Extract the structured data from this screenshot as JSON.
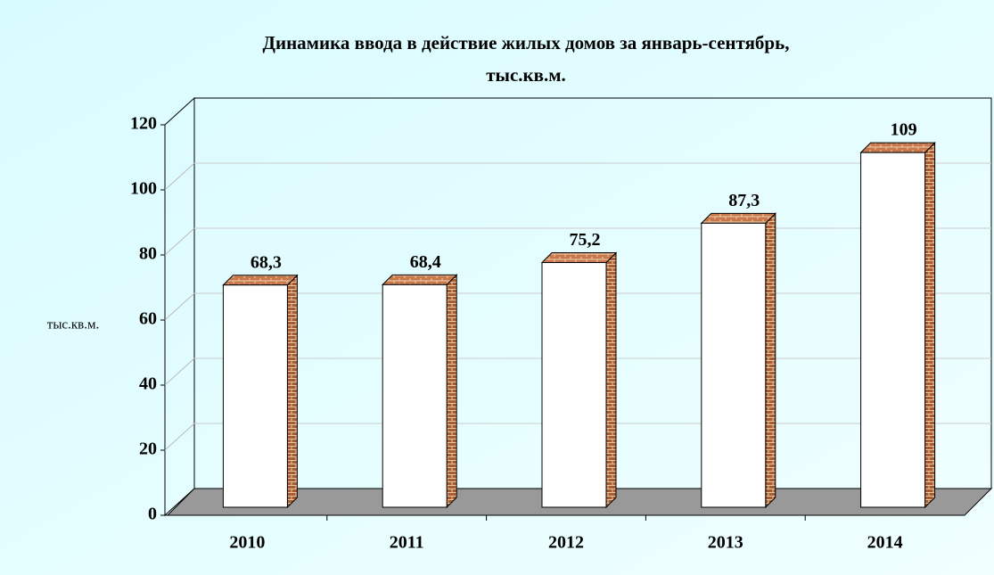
{
  "chart_data": {
    "type": "bar3d",
    "title": "Динамика ввода в действие жилых домов за январь-сентябрь,",
    "subtitle": "тыс.кв.м.",
    "y_label": "тыс.кв.м.",
    "categories": [
      "2010",
      "2011",
      "2012",
      "2013",
      "2014"
    ],
    "values": [
      68.3,
      68.4,
      75.2,
      87.3,
      109
    ],
    "value_labels": [
      "68,3",
      "68,4",
      "75,2",
      "87,3",
      "109"
    ],
    "color": "#ffffff",
    "top_color": "#c8784a",
    "side_color": "#a85a30",
    "ylim": [
      0,
      120
    ],
    "yticks": [
      0,
      20,
      40,
      60,
      80,
      100,
      120
    ],
    "grid": true
  }
}
